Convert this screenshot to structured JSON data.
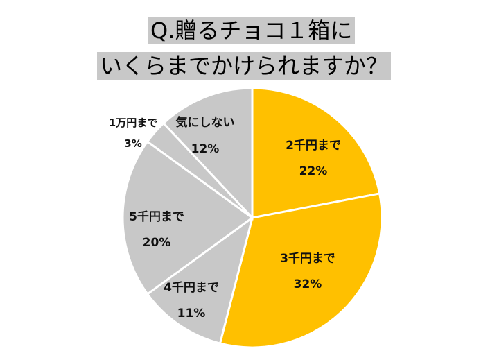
{
  "title": {
    "line1": "Q.贈るチョコ１箱に",
    "line2": "いくらまでかけられますか？"
  },
  "chart_data": {
    "type": "pie",
    "title": "Q.贈るチョコ１箱にいくらまでかけられますか？",
    "unit": "%",
    "slices": [
      {
        "label": "2千円まで",
        "value": 22,
        "value_label": "22%",
        "color": "#ffc000"
      },
      {
        "label": "3千円まで",
        "value": 32,
        "value_label": "32%",
        "color": "#ffc000"
      },
      {
        "label": "4千円まで",
        "value": 11,
        "value_label": "11%",
        "color": "#c8c8c8"
      },
      {
        "label": "5千円まで",
        "value": 20,
        "value_label": "20%",
        "color": "#c8c8c8"
      },
      {
        "label": "1万円まで",
        "value": 3,
        "value_label": "3%",
        "color": "#c8c8c8"
      },
      {
        "label": "気にしない",
        "value": 12,
        "value_label": "12%",
        "color": "#c8c8c8"
      }
    ],
    "start": "12 o'clock",
    "direction": "clockwise",
    "legend": "none"
  }
}
